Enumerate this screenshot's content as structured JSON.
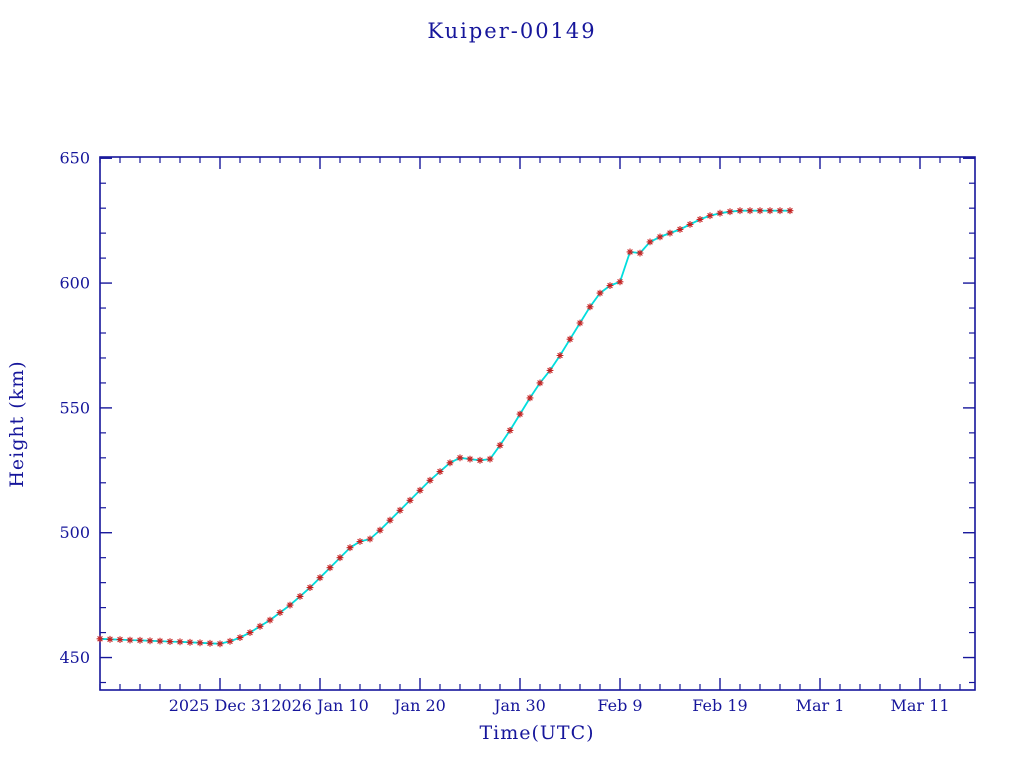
{
  "page": {
    "background": "#ffffff"
  },
  "chart_data": {
    "type": "line",
    "title": "Kuiper-00149",
    "xlabel": "Time(UTC)",
    "ylabel": "Height (km)",
    "legend": "none",
    "grid": false,
    "x_axis": {
      "unit": "days since 2025 Dec 19 (UTC)",
      "lim": [
        0,
        87.5
      ],
      "minor_step": 2,
      "major_ticks": [
        {
          "day": 12,
          "label": "2025 Dec 31"
        },
        {
          "day": 22,
          "label": "2026 Jan 10"
        },
        {
          "day": 32,
          "label": "Jan 20"
        },
        {
          "day": 42,
          "label": "Jan 30"
        },
        {
          "day": 52,
          "label": "Feb 9"
        },
        {
          "day": 62,
          "label": "Feb 19"
        },
        {
          "day": 72,
          "label": "Mar 1"
        },
        {
          "day": 82,
          "label": "Mar 11"
        }
      ]
    },
    "y_axis": {
      "lim": [
        437,
        650.5
      ],
      "minor_step": 10,
      "major_ticks": [
        450,
        500,
        550,
        600,
        650
      ]
    },
    "colors": {
      "axis": "#16169b",
      "text": "#16169b",
      "line": "#00dede",
      "marker": "#c42222"
    },
    "series": [
      {
        "name": "Kuiper-00149 height",
        "marker": "asterisk",
        "line_style": "solid",
        "points": [
          [
            0,
            457.5
          ],
          [
            1,
            457.3
          ],
          [
            2,
            457.2
          ],
          [
            3,
            457.0
          ],
          [
            4,
            456.9
          ],
          [
            5,
            456.7
          ],
          [
            6,
            456.6
          ],
          [
            7,
            456.4
          ],
          [
            8,
            456.3
          ],
          [
            9,
            456.1
          ],
          [
            10,
            455.9
          ],
          [
            11,
            455.7
          ],
          [
            12,
            455.5
          ],
          [
            13,
            456.5
          ],
          [
            14,
            458.0
          ],
          [
            15,
            460.0
          ],
          [
            16,
            462.5
          ],
          [
            17,
            465.0
          ],
          [
            18,
            468.0
          ],
          [
            19,
            471.0
          ],
          [
            20,
            474.5
          ],
          [
            21,
            478.0
          ],
          [
            22,
            482.0
          ],
          [
            23,
            486.0
          ],
          [
            24,
            490.0
          ],
          [
            25,
            494.0
          ],
          [
            26,
            496.5
          ],
          [
            27,
            497.5
          ],
          [
            28,
            501.0
          ],
          [
            29,
            505.0
          ],
          [
            30,
            509.0
          ],
          [
            31,
            513.0
          ],
          [
            32,
            517.0
          ],
          [
            33,
            521.0
          ],
          [
            34,
            524.5
          ],
          [
            35,
            528.0
          ],
          [
            36,
            530.0
          ],
          [
            37,
            529.5
          ],
          [
            38,
            529.0
          ],
          [
            39,
            529.5
          ],
          [
            40,
            535.0
          ],
          [
            41,
            541.0
          ],
          [
            42,
            547.5
          ],
          [
            43,
            554.0
          ],
          [
            44,
            560.0
          ],
          [
            45,
            565.0
          ],
          [
            46,
            571.0
          ],
          [
            47,
            577.5
          ],
          [
            48,
            584.0
          ],
          [
            49,
            590.5
          ],
          [
            50,
            596.0
          ],
          [
            51,
            599.0
          ],
          [
            52,
            600.5
          ],
          [
            53,
            612.5
          ],
          [
            54,
            612.0
          ],
          [
            55,
            616.5
          ],
          [
            56,
            618.5
          ],
          [
            57,
            620.0
          ],
          [
            58,
            621.5
          ],
          [
            59,
            623.5
          ],
          [
            60,
            625.5
          ],
          [
            61,
            627.0
          ],
          [
            62,
            628.0
          ],
          [
            63,
            628.6
          ],
          [
            64,
            629.0
          ],
          [
            65,
            629.0
          ],
          [
            66,
            629.0
          ],
          [
            67,
            629.0
          ],
          [
            68,
            629.0
          ],
          [
            69,
            629.0
          ]
        ]
      }
    ]
  }
}
